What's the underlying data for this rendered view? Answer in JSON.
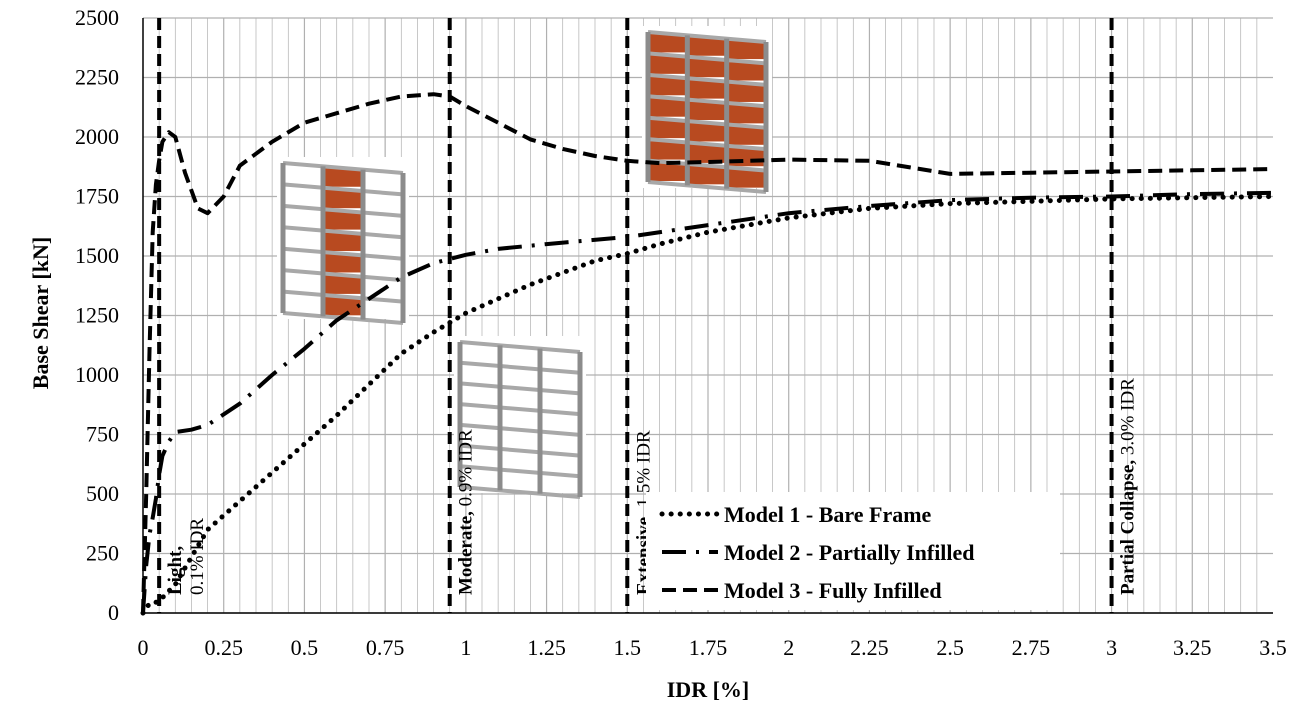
{
  "chart_data": {
    "type": "line",
    "xlabel": "IDR [%]",
    "ylabel": "Base Shear [kN]",
    "xlim": [
      0,
      3.5
    ],
    "ylim": [
      0,
      2500
    ],
    "x_ticks": [
      "0",
      "0.25",
      "0.5",
      "0.75",
      "1",
      "1.25",
      "1.5",
      "1.75",
      "2",
      "2.25",
      "2.5",
      "2.75",
      "3",
      "3.25",
      "3.5"
    ],
    "y_ticks": [
      "0",
      "250",
      "500",
      "750",
      "1000",
      "1250",
      "1500",
      "1750",
      "2000",
      "2250",
      "2500"
    ],
    "x_tick_values": [
      0,
      0.25,
      0.5,
      0.75,
      1,
      1.25,
      1.5,
      1.75,
      2,
      2.25,
      2.5,
      2.75,
      3,
      3.25,
      3.5
    ],
    "y_tick_values": [
      0,
      250,
      500,
      750,
      1000,
      1250,
      1500,
      1750,
      2000,
      2250,
      2500
    ],
    "grid": true,
    "legend_position": "bottom-right",
    "series": [
      {
        "name": "Model 1 - Bare Frame",
        "style": "dotted",
        "x": [
          0,
          0.02,
          0.04,
          0.05,
          0.1,
          0.2,
          0.3,
          0.4,
          0.5,
          0.6,
          0.7,
          0.8,
          0.9,
          1.0,
          1.1,
          1.2,
          1.3,
          1.4,
          1.5,
          1.6,
          1.75,
          2.0,
          2.25,
          2.5,
          2.75,
          3.0,
          3.25,
          3.5
        ],
        "y": [
          0,
          40,
          45,
          50,
          120,
          350,
          470,
          590,
          710,
          830,
          960,
          1090,
          1180,
          1260,
          1320,
          1380,
          1430,
          1480,
          1510,
          1550,
          1600,
          1660,
          1700,
          1720,
          1730,
          1740,
          1745,
          1750
        ]
      },
      {
        "name": "Model 2 - Partially Infilled",
        "style": "dash-dot",
        "x": [
          0,
          0.01,
          0.02,
          0.03,
          0.04,
          0.05,
          0.06,
          0.08,
          0.1,
          0.15,
          0.2,
          0.3,
          0.4,
          0.5,
          0.6,
          0.7,
          0.8,
          0.9,
          1.0,
          1.1,
          1.25,
          1.5,
          1.75,
          2.0,
          2.25,
          2.5,
          2.75,
          3.0,
          3.25,
          3.5
        ],
        "y": [
          0,
          200,
          330,
          400,
          480,
          580,
          660,
          720,
          760,
          770,
          790,
          880,
          1000,
          1110,
          1230,
          1320,
          1410,
          1470,
          1505,
          1530,
          1550,
          1580,
          1630,
          1680,
          1710,
          1735,
          1745,
          1750,
          1760,
          1765
        ]
      },
      {
        "name": "Model 3 - Fully Infilled",
        "style": "dashed",
        "x": [
          0,
          0.01,
          0.02,
          0.03,
          0.04,
          0.05,
          0.06,
          0.08,
          0.1,
          0.13,
          0.17,
          0.2,
          0.25,
          0.3,
          0.4,
          0.5,
          0.6,
          0.7,
          0.8,
          0.9,
          0.95,
          1.0,
          1.1,
          1.2,
          1.3,
          1.4,
          1.5,
          1.6,
          1.75,
          2.0,
          2.25,
          2.5,
          2.75,
          3.0,
          3.25,
          3.5
        ],
        "y": [
          0,
          500,
          1100,
          1600,
          1800,
          1900,
          1980,
          2020,
          2000,
          1850,
          1700,
          1680,
          1750,
          1880,
          1980,
          2060,
          2100,
          2140,
          2170,
          2180,
          2170,
          2130,
          2060,
          1990,
          1950,
          1920,
          1900,
          1890,
          1895,
          1905,
          1900,
          1845,
          1850,
          1855,
          1860,
          1865
        ]
      }
    ],
    "damage_states": [
      {
        "x": 0.05,
        "bold": "Light,",
        "rest": "0.1% IDR",
        "lines": 2
      },
      {
        "x": 0.95,
        "bold": "Moderate,",
        "rest": " 0.9% IDR",
        "lines": 1
      },
      {
        "x": 1.5,
        "bold": "Extensive,",
        "rest": " 1.5% IDR",
        "lines": 1
      },
      {
        "x": 3.0,
        "bold": "Partial Collapse,",
        "rest": " 3.0% IDR",
        "lines": 1
      }
    ],
    "colors": {
      "line": "#000000",
      "grid": "#b0b0b0",
      "infill": "#b84a20",
      "frame": "#a8a8a8"
    }
  }
}
